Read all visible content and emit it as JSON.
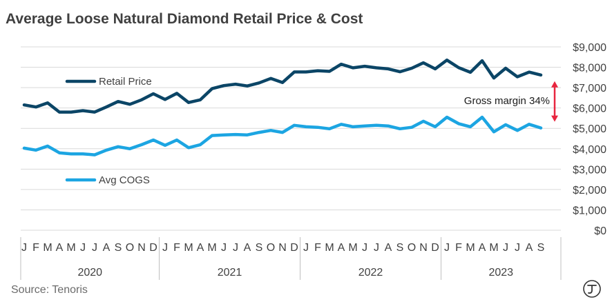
{
  "chart_data": {
    "type": "line",
    "title": "Average Loose Natural Diamond Retail Price & Cost",
    "source": "Source: Tenoris",
    "ylim": [
      0,
      9000
    ],
    "y_ticks": [
      "$0",
      "$1,000",
      "$2,000",
      "$3,000",
      "$4,000",
      "$5,000",
      "$6,000",
      "$7,000",
      "$8,000",
      "$9,000"
    ],
    "grid": true,
    "month_labels": [
      "J",
      "F",
      "M",
      "A",
      "M",
      "J",
      "J",
      "A",
      "S",
      "O",
      "N",
      "D",
      "J",
      "F",
      "M",
      "A",
      "M",
      "J",
      "J",
      "A",
      "S",
      "O",
      "N",
      "D",
      "J",
      "F",
      "M",
      "A",
      "M",
      "J",
      "J",
      "A",
      "S",
      "O",
      "N",
      "D",
      "J",
      "F",
      "M",
      "A",
      "M",
      "J",
      "J",
      "A",
      "S"
    ],
    "years": [
      "2020",
      "2021",
      "2022",
      "2023"
    ],
    "year_months": [
      12,
      12,
      12,
      9
    ],
    "series": [
      {
        "name": "Retail Price",
        "color": "#0b4566",
        "values": [
          6150,
          6050,
          6250,
          5800,
          5800,
          5870,
          5800,
          6050,
          6320,
          6180,
          6400,
          6700,
          6420,
          6720,
          6270,
          6400,
          6950,
          7100,
          7170,
          7080,
          7230,
          7450,
          7250,
          7770,
          7770,
          7830,
          7800,
          8150,
          7970,
          8050,
          7970,
          7920,
          7780,
          7950,
          8220,
          7920,
          8350,
          7980,
          7750,
          8320,
          7470,
          7950,
          7530,
          7760,
          7620
        ]
      },
      {
        "name": "Avg COGS",
        "color": "#1ca5e2",
        "values": [
          4030,
          3930,
          4130,
          3800,
          3750,
          3750,
          3700,
          3930,
          4100,
          4000,
          4200,
          4430,
          4170,
          4430,
          4050,
          4200,
          4650,
          4680,
          4700,
          4680,
          4800,
          4900,
          4800,
          5150,
          5080,
          5050,
          4980,
          5200,
          5080,
          5120,
          5150,
          5120,
          4980,
          5050,
          5350,
          5080,
          5550,
          5230,
          5080,
          5550,
          4830,
          5180,
          4900,
          5200,
          5020
        ]
      }
    ],
    "annotation": {
      "text": "Gross margin 34%",
      "from": 5020,
      "to": 7620,
      "color": "#e8253f"
    }
  }
}
